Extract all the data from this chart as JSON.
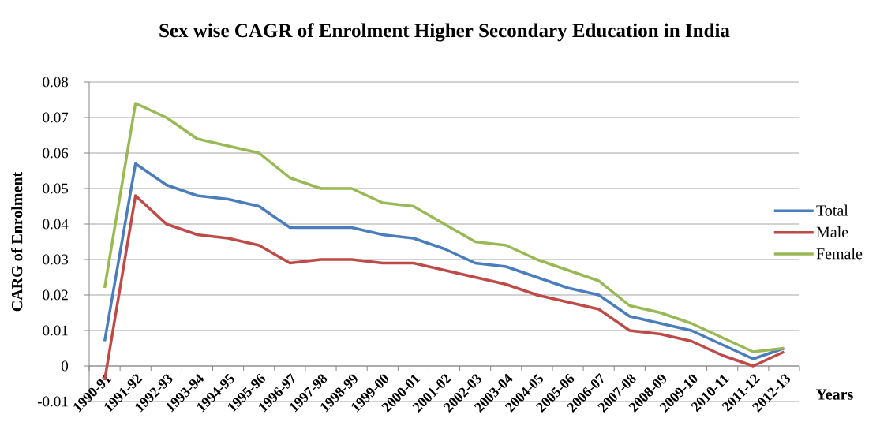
{
  "chart_data": {
    "type": "line",
    "title": "Sex wise CAGR of Enrolment Higher Secondary Education in India",
    "xlabel": "Years",
    "ylabel": "CARG of Enrolment",
    "categories": [
      "1990-91",
      "1991-92",
      "1992-93",
      "1993-94",
      "1994-95",
      "1995-96",
      "1996-97",
      "1997-98",
      "1998-99",
      "1999-00",
      "2000-01",
      "2001-02",
      "2002-03",
      "2003-04",
      "2004-05",
      "2005-06",
      "2006-07",
      "2007-08",
      "2008-09",
      "2009-10",
      "2010-11",
      "2011-12",
      "2012-13"
    ],
    "series": [
      {
        "name": "Total",
        "color": "#4a7ebb",
        "values": [
          0.007,
          0.057,
          0.051,
          0.048,
          0.047,
          0.045,
          0.039,
          0.039,
          0.039,
          0.037,
          0.036,
          0.033,
          0.029,
          0.028,
          0.025,
          0.022,
          0.02,
          0.014,
          0.012,
          0.01,
          0.006,
          0.002,
          0.005
        ]
      },
      {
        "name": "Male",
        "color": "#be4b48",
        "values": [
          -0.004,
          0.048,
          0.04,
          0.037,
          0.036,
          0.034,
          0.029,
          0.03,
          0.03,
          0.029,
          0.029,
          0.027,
          0.025,
          0.023,
          0.02,
          0.018,
          0.016,
          0.01,
          0.009,
          0.007,
          0.003,
          0.0,
          0.004
        ]
      },
      {
        "name": "Female",
        "color": "#98b954",
        "values": [
          0.022,
          0.074,
          0.07,
          0.064,
          0.062,
          0.06,
          0.053,
          0.05,
          0.05,
          0.046,
          0.045,
          0.04,
          0.035,
          0.034,
          0.03,
          0.027,
          0.024,
          0.017,
          0.015,
          0.012,
          0.008,
          0.004,
          0.005
        ]
      }
    ],
    "ylim": [
      -0.01,
      0.08
    ],
    "yticks": [
      -0.01,
      0,
      0.01,
      0.02,
      0.03,
      0.04,
      0.05,
      0.06,
      0.07,
      0.08
    ],
    "grid": "y",
    "legend": "right",
    "marker": "none",
    "line_style": "solid"
  }
}
